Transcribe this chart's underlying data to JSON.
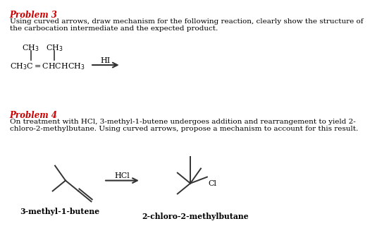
{
  "background_color": "#ffffff",
  "problem3_title": "Problem 3",
  "problem3_text_line1": "Using curved arrows, draw mechanism for the following reaction, clearly show the structure of",
  "problem3_text_line2": "the carbocation intermediate and the expected product.",
  "problem3_reagent": "HI",
  "problem4_title": "Problem 4",
  "problem4_text_line1": "On treatment with HCl, 3-methyl-1-butene undergoes addition and rearrangement to yield 2-",
  "problem4_text_line2": "chloro-2-methylbutane. Using curved arrows, propose a mechanism to account for this result.",
  "problem4_reagent": "HCl",
  "label_left": "3-methyl-1-butene",
  "label_right": "2-chloro-2-methylbutane",
  "title_color": "#cc0000",
  "text_color": "#000000",
  "line_color": "#333333",
  "fontsize_title": 8.5,
  "fontsize_text": 7.5,
  "fontsize_formula": 8.0,
  "fontsize_label": 7.8
}
